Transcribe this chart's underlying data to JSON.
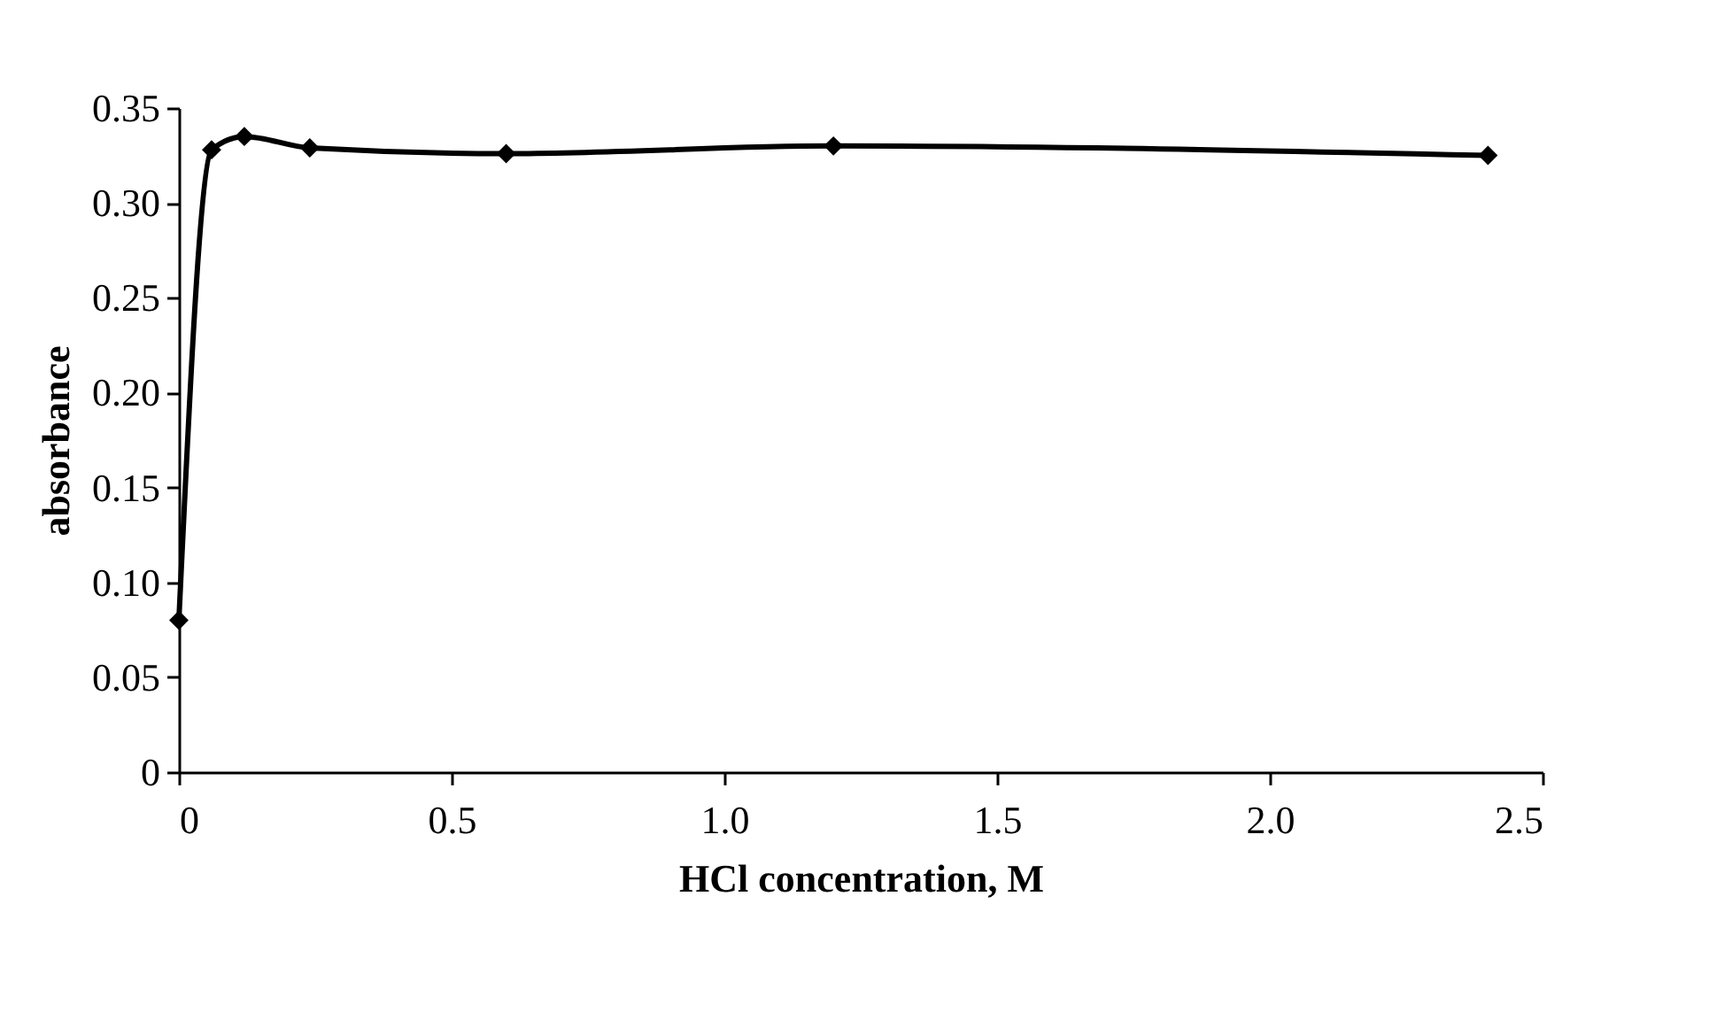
{
  "chart_data": {
    "type": "line",
    "xlabel": "HCl concentration, M",
    "ylabel": "absorbance",
    "x": [
      0,
      0.06,
      0.12,
      0.24,
      0.6,
      1.2,
      2.4
    ],
    "series": [
      {
        "color": "#000000",
        "values": [
          0.08,
          0.328,
          0.335,
          0.329,
          0.326,
          0.33,
          0.325
        ]
      }
    ],
    "xlim": [
      0,
      2.5
    ],
    "xticks": [
      0,
      0.5,
      {
        "value": 1,
        "label": "1.0"
      },
      1.5,
      {
        "value": 2,
        "label": "2.0"
      },
      2.5
    ],
    "ylim": [
      0,
      0.35
    ],
    "yticks": [
      0,
      0.05,
      {
        "value": 0.1,
        "label": "0.10"
      },
      0.15,
      {
        "value": 0.2,
        "label": "0.20"
      },
      0.25,
      {
        "value": 0.3,
        "label": "0.30"
      },
      0.35
    ],
    "grid": false,
    "marker": "diamond",
    "line_style": "solid"
  }
}
